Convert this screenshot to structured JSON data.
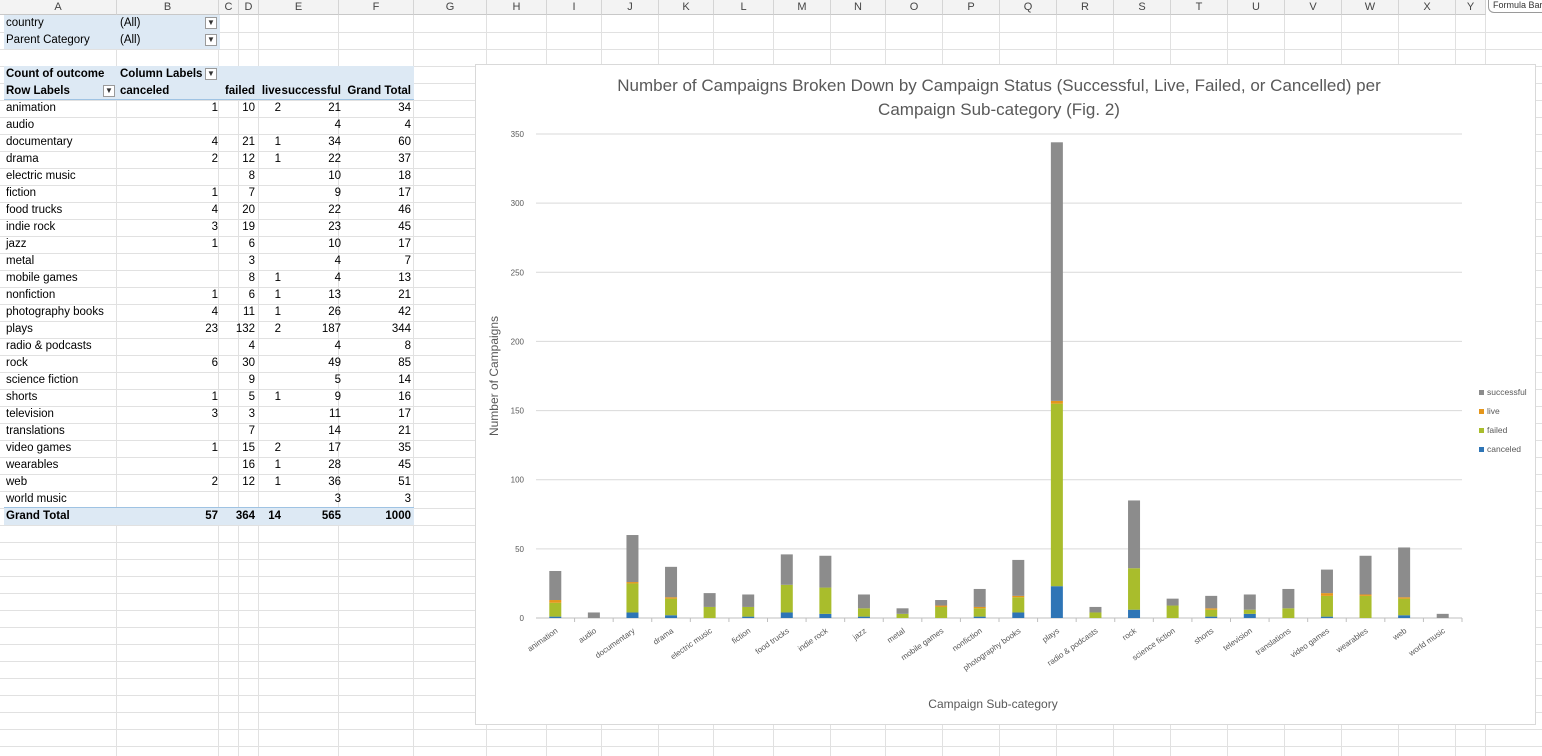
{
  "columns": [
    "A",
    "B",
    "C",
    "D",
    "E",
    "F",
    "G",
    "H",
    "I",
    "J",
    "K",
    "L",
    "M",
    "N",
    "O",
    "P",
    "Q",
    "R",
    "S",
    "T",
    "U",
    "V",
    "W",
    "X",
    "Y"
  ],
  "formula_tip": "Formula Bar",
  "filters": [
    {
      "label": "country",
      "value": "(All)"
    },
    {
      "label": "Parent Category",
      "value": "(All)"
    }
  ],
  "pivot": {
    "count_label": "Count of outcome",
    "column_labels": "Column Labels",
    "row_labels": "Row Labels",
    "headers": [
      "canceled",
      "failed",
      "live",
      "successful",
      "Grand Total"
    ],
    "rows": [
      {
        "label": "animation",
        "c": "1",
        "f": "10",
        "l": "2",
        "s": "21",
        "t": "34"
      },
      {
        "label": "audio",
        "c": "",
        "f": "",
        "l": "",
        "s": "4",
        "t": "4"
      },
      {
        "label": "documentary",
        "c": "4",
        "f": "21",
        "l": "1",
        "s": "34",
        "t": "60"
      },
      {
        "label": "drama",
        "c": "2",
        "f": "12",
        "l": "1",
        "s": "22",
        "t": "37"
      },
      {
        "label": "electric music",
        "c": "",
        "f": "8",
        "l": "",
        "s": "10",
        "t": "18"
      },
      {
        "label": "fiction",
        "c": "1",
        "f": "7",
        "l": "",
        "s": "9",
        "t": "17"
      },
      {
        "label": "food trucks",
        "c": "4",
        "f": "20",
        "l": "",
        "s": "22",
        "t": "46"
      },
      {
        "label": "indie rock",
        "c": "3",
        "f": "19",
        "l": "",
        "s": "23",
        "t": "45"
      },
      {
        "label": "jazz",
        "c": "1",
        "f": "6",
        "l": "",
        "s": "10",
        "t": "17"
      },
      {
        "label": "metal",
        "c": "",
        "f": "3",
        "l": "",
        "s": "4",
        "t": "7"
      },
      {
        "label": "mobile games",
        "c": "",
        "f": "8",
        "l": "1",
        "s": "4",
        "t": "13"
      },
      {
        "label": "nonfiction",
        "c": "1",
        "f": "6",
        "l": "1",
        "s": "13",
        "t": "21"
      },
      {
        "label": "photography books",
        "c": "4",
        "f": "11",
        "l": "1",
        "s": "26",
        "t": "42"
      },
      {
        "label": "plays",
        "c": "23",
        "f": "132",
        "l": "2",
        "s": "187",
        "t": "344"
      },
      {
        "label": "radio & podcasts",
        "c": "",
        "f": "4",
        "l": "",
        "s": "4",
        "t": "8"
      },
      {
        "label": "rock",
        "c": "6",
        "f": "30",
        "l": "",
        "s": "49",
        "t": "85"
      },
      {
        "label": "science fiction",
        "c": "",
        "f": "9",
        "l": "",
        "s": "5",
        "t": "14"
      },
      {
        "label": "shorts",
        "c": "1",
        "f": "5",
        "l": "1",
        "s": "9",
        "t": "16"
      },
      {
        "label": "television",
        "c": "3",
        "f": "3",
        "l": "",
        "s": "11",
        "t": "17"
      },
      {
        "label": "translations",
        "c": "",
        "f": "7",
        "l": "",
        "s": "14",
        "t": "21"
      },
      {
        "label": "video games",
        "c": "1",
        "f": "15",
        "l": "2",
        "s": "17",
        "t": "35"
      },
      {
        "label": "wearables",
        "c": "",
        "f": "16",
        "l": "1",
        "s": "28",
        "t": "45"
      },
      {
        "label": "web",
        "c": "2",
        "f": "12",
        "l": "1",
        "s": "36",
        "t": "51"
      },
      {
        "label": "world music",
        "c": "",
        "f": "",
        "l": "",
        "s": "3",
        "t": "3"
      }
    ],
    "grand_total": {
      "label": "Grand Total",
      "c": "57",
      "f": "364",
      "l": "14",
      "s": "565",
      "t": "1000"
    }
  },
  "chart_data": {
    "type": "bar",
    "stacked": true,
    "title": "Number of Campaigns Broken Down by Campaign Status (Successful, Live, Failed, or Cancelled) per Campaign Sub-category (Fig. 2)",
    "title_lines": [
      "Number of Campaigns Broken Down by Campaign Status (Successful, Live, Failed, or Cancelled) per",
      "Campaign Sub-category (Fig. 2)"
    ],
    "xlabel": "Campaign Sub-category",
    "ylabel": "Number of Campaigns",
    "ylim": [
      0,
      350
    ],
    "yticks": [
      0,
      50,
      100,
      150,
      200,
      250,
      300,
      350
    ],
    "grid": true,
    "legend_position": "right",
    "categories": [
      "animation",
      "audio",
      "documentary",
      "drama",
      "electric music",
      "fiction",
      "food trucks",
      "indie rock",
      "jazz",
      "metal",
      "mobile games",
      "nonfiction",
      "photography books",
      "plays",
      "radio & podcasts",
      "rock",
      "science fiction",
      "shorts",
      "television",
      "translations",
      "video games",
      "wearables",
      "web",
      "world music"
    ],
    "series": [
      {
        "name": "canceled",
        "color": "#2e75b6",
        "values": [
          1,
          0,
          4,
          2,
          0,
          1,
          4,
          3,
          1,
          0,
          0,
          1,
          4,
          23,
          0,
          6,
          0,
          1,
          3,
          0,
          1,
          0,
          2,
          0
        ]
      },
      {
        "name": "failed",
        "color": "#a9bd2c",
        "values": [
          10,
          0,
          21,
          12,
          8,
          7,
          20,
          19,
          6,
          3,
          8,
          6,
          11,
          132,
          4,
          30,
          9,
          5,
          3,
          7,
          15,
          16,
          12,
          0
        ]
      },
      {
        "name": "live",
        "color": "#e5961b",
        "values": [
          2,
          0,
          1,
          1,
          0,
          0,
          0,
          0,
          0,
          0,
          1,
          1,
          1,
          2,
          0,
          0,
          0,
          1,
          0,
          0,
          2,
          1,
          1,
          0
        ]
      },
      {
        "name": "successful",
        "color": "#8c8c8c",
        "values": [
          21,
          4,
          34,
          22,
          10,
          9,
          22,
          23,
          10,
          4,
          4,
          13,
          26,
          187,
          4,
          49,
          5,
          9,
          11,
          14,
          17,
          28,
          36,
          3
        ]
      }
    ],
    "legend_order": [
      "successful",
      "live",
      "failed",
      "canceled"
    ]
  }
}
